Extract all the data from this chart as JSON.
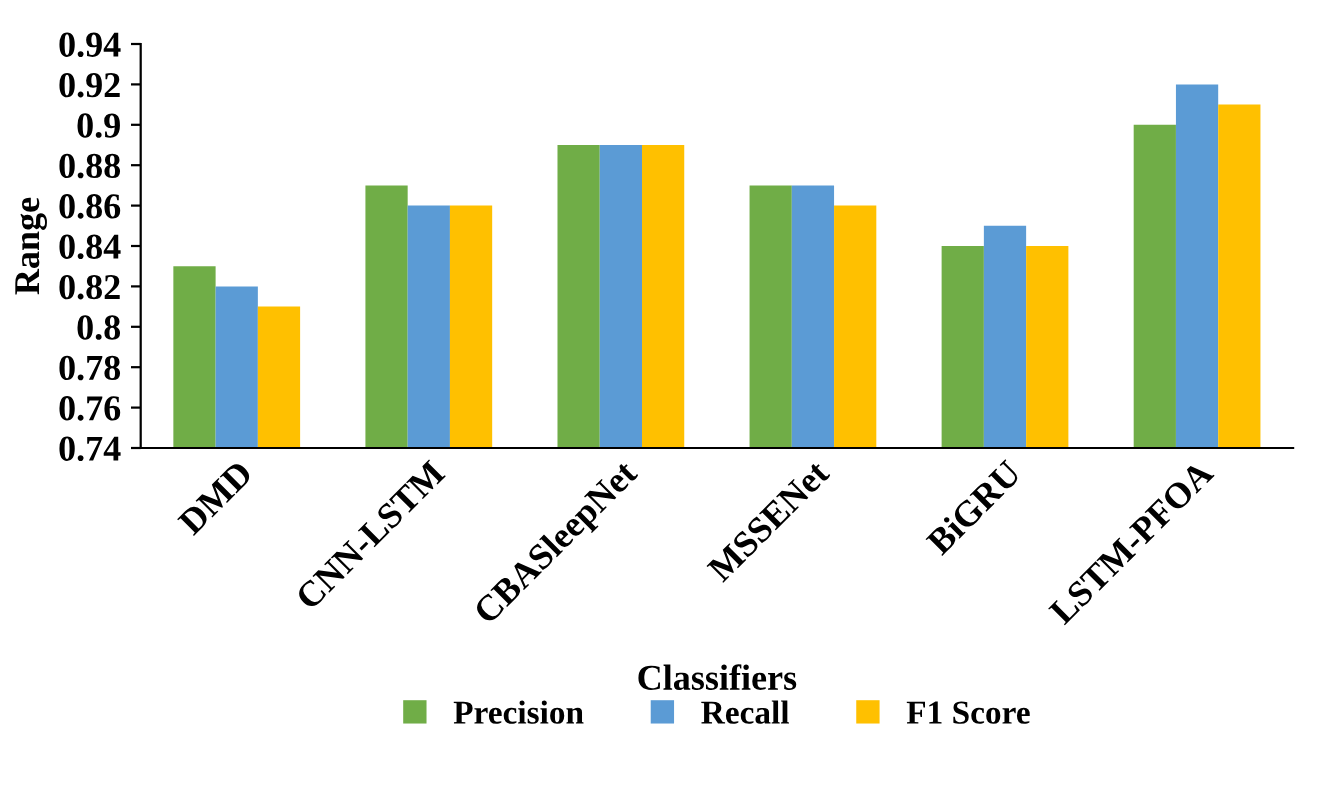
{
  "chart_data": {
    "type": "bar",
    "xlabel": "Classifiers",
    "ylabel": "Range",
    "categories": [
      "DMD",
      "CNN-LSTM",
      "CBASleepNet",
      "MSSENet",
      "BiGRU",
      "LSTM-PFOA"
    ],
    "series": [
      {
        "name": "Precision",
        "color": "#70ad47",
        "values": [
          0.83,
          0.87,
          0.89,
          0.87,
          0.84,
          0.9
        ]
      },
      {
        "name": "Recall",
        "color": "#5b9bd5",
        "values": [
          0.82,
          0.86,
          0.89,
          0.87,
          0.85,
          0.92
        ]
      },
      {
        "name": "F1 Score",
        "color": "#ffc000",
        "values": [
          0.81,
          0.86,
          0.89,
          0.86,
          0.84,
          0.91
        ]
      }
    ],
    "ylim": [
      0.74,
      0.94
    ],
    "yticks": [
      0.74,
      0.76,
      0.78,
      0.8,
      0.82,
      0.84,
      0.86,
      0.88,
      0.9,
      0.92,
      0.94
    ],
    "grid": false,
    "legend": "bottom"
  }
}
